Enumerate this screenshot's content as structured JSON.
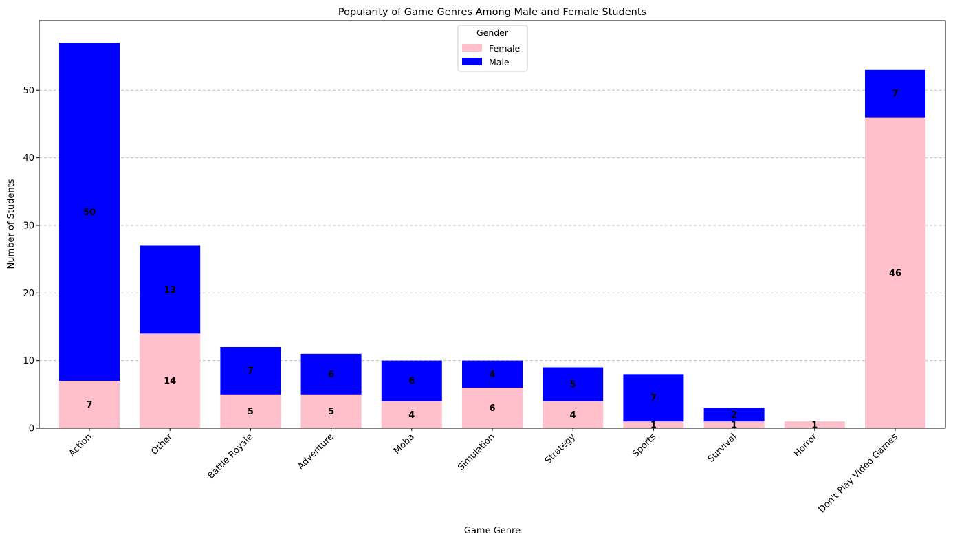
{
  "chart_data": {
    "type": "bar",
    "stacked": true,
    "title": "Popularity of Game Genres Among Male and Female Students",
    "xlabel": "Game Genre",
    "ylabel": "Number of Students",
    "categories": [
      "Action",
      "Other",
      "Battle Royale",
      "Adventure",
      "Moba",
      "Simulation",
      "Strategy",
      "Sports",
      "Survival",
      "Horror",
      "Don't Play Video Games"
    ],
    "series": [
      {
        "name": "Female",
        "color": "#ffc0cb",
        "values": [
          7,
          14,
          5,
          5,
          4,
          6,
          4,
          1,
          1,
          1,
          46
        ]
      },
      {
        "name": "Male",
        "color": "#0000ff",
        "values": [
          50,
          13,
          7,
          6,
          6,
          4,
          5,
          7,
          2,
          0,
          7
        ]
      }
    ],
    "ylim": [
      0,
      60
    ],
    "yticks": [
      0,
      10,
      20,
      30,
      40,
      50
    ],
    "grid": "y-dashed",
    "legend": {
      "title": "Gender",
      "position": "upper-center"
    },
    "x_tick_rotation": 45
  }
}
